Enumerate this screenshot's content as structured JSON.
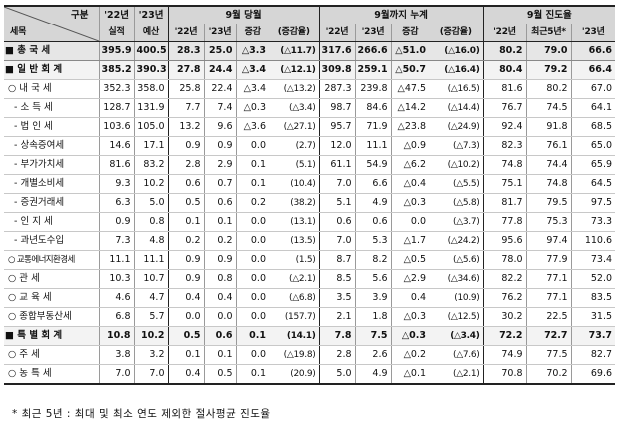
{
  "header": {
    "corner_top": "구분",
    "corner_bottom": "세목",
    "col_22_top": "'22년",
    "col_22_bottom": "실적",
    "col_23_top": "'23년",
    "col_23_bottom": "예산",
    "group_month": "9월 당월",
    "group_cum": "9월까지 누계",
    "group_progress": "9월 진도율",
    "sub_22": "'22년",
    "sub_23": "'23년",
    "sub_change": "증감",
    "sub_rate": "(증감율)",
    "sub_p22": "'22년",
    "sub_p5y": "최근5년*",
    "sub_p23": "'23년"
  },
  "rows": [
    {
      "label": "■ 총 국 세",
      "c": [
        "395.9",
        "400.5",
        "28.3",
        "25.0",
        "△3.3",
        "(△11.7)",
        "317.6",
        "266.6",
        "△51.0",
        "(△16.0)",
        "80.2",
        "79.0",
        "66.6"
      ]
    },
    {
      "label": "■ 일 반 회 계",
      "c": [
        "385.2",
        "390.3",
        "27.8",
        "24.4",
        "△3.4",
        "(△12.1)",
        "309.8",
        "259.1",
        "△50.7",
        "(△16.4)",
        "80.4",
        "79.2",
        "66.4"
      ]
    },
    {
      "label": "○ 내   국   세",
      "c": [
        "352.3",
        "358.0",
        "25.8",
        "22.4",
        "△3.4",
        "(△13.2)",
        "287.3",
        "239.8",
        "△47.5",
        "(△16.5)",
        "81.6",
        "80.2",
        "67.0"
      ]
    },
    {
      "label": "- 소  득  세",
      "c": [
        "128.7",
        "131.9",
        "7.7",
        "7.4",
        "△0.3",
        "(△3.4)",
        "98.7",
        "84.6",
        "△14.2",
        "(△14.4)",
        "76.7",
        "74.5",
        "64.1"
      ]
    },
    {
      "label": "- 법  인  세",
      "c": [
        "103.6",
        "105.0",
        "13.2",
        "9.6",
        "△3.6",
        "(△27.1)",
        "95.7",
        "71.9",
        "△23.8",
        "(△24.9)",
        "92.4",
        "91.8",
        "68.5"
      ]
    },
    {
      "label": "- 상속증여세",
      "c": [
        "14.6",
        "17.1",
        "0.9",
        "0.9",
        "0.0",
        "(2.7)",
        "12.0",
        "11.1",
        "△0.9",
        "(△7.3)",
        "82.3",
        "76.1",
        "65.0"
      ]
    },
    {
      "label": "- 부가가치세",
      "c": [
        "81.6",
        "83.2",
        "2.8",
        "2.9",
        "0.1",
        "(5.1)",
        "61.1",
        "54.9",
        "△6.2",
        "(△10.2)",
        "74.8",
        "74.4",
        "65.9"
      ]
    },
    {
      "label": "- 개별소비세",
      "c": [
        "9.3",
        "10.2",
        "0.6",
        "0.7",
        "0.1",
        "(10.4)",
        "7.0",
        "6.6",
        "△0.4",
        "(△5.5)",
        "75.1",
        "74.8",
        "64.5"
      ]
    },
    {
      "label": "- 증권거래세",
      "c": [
        "6.3",
        "5.0",
        "0.5",
        "0.6",
        "0.2",
        "(38.2)",
        "5.1",
        "4.9",
        "△0.3",
        "(△5.8)",
        "81.7",
        "79.5",
        "97.5"
      ]
    },
    {
      "label": "- 인  지  세",
      "c": [
        "0.9",
        "0.8",
        "0.1",
        "0.1",
        "0.0",
        "(13.1)",
        "0.6",
        "0.6",
        "0.0",
        "(△3.7)",
        "77.8",
        "75.3",
        "73.3"
      ]
    },
    {
      "label": "- 과년도수입",
      "c": [
        "7.3",
        "4.8",
        "0.2",
        "0.2",
        "0.0",
        "(13.5)",
        "7.0",
        "5.3",
        "△1.7",
        "(△24.2)",
        "95.6",
        "97.4",
        "110.6"
      ]
    },
    {
      "label": "○ 교통에너지환경세",
      "c": [
        "11.1",
        "11.1",
        "0.9",
        "0.9",
        "0.0",
        "(1.5)",
        "8.7",
        "8.2",
        "△0.5",
        "(△5.6)",
        "78.0",
        "77.9",
        "73.4"
      ]
    },
    {
      "label": "○ 관        세",
      "c": [
        "10.3",
        "10.7",
        "0.9",
        "0.8",
        "0.0",
        "(△2.1)",
        "8.5",
        "5.6",
        "△2.9",
        "(△34.6)",
        "82.2",
        "77.1",
        "52.0"
      ]
    },
    {
      "label": "○ 교   육   세",
      "c": [
        "4.6",
        "4.7",
        "0.4",
        "0.4",
        "0.0",
        "(△6.8)",
        "3.5",
        "3.9",
        "0.4",
        "(10.9)",
        "76.2",
        "77.1",
        "83.5"
      ]
    },
    {
      "label": "○ 종합부동산세",
      "c": [
        "6.8",
        "5.7",
        "0.0",
        "0.0",
        "0.0",
        "(157.7)",
        "2.1",
        "1.8",
        "△0.3",
        "(△12.5)",
        "30.2",
        "22.5",
        "31.5"
      ]
    },
    {
      "label": "■ 특 별 회 계",
      "c": [
        "10.8",
        "10.2",
        "0.5",
        "0.6",
        "0.1",
        "(14.1)",
        "7.8",
        "7.5",
        "△0.3",
        "(△3.4)",
        "72.2",
        "72.7",
        "73.7"
      ]
    },
    {
      "label": "○ 주        세",
      "c": [
        "3.8",
        "3.2",
        "0.1",
        "0.1",
        "0.0",
        "(△19.8)",
        "2.8",
        "2.6",
        "△0.2",
        "(△7.6)",
        "74.9",
        "77.5",
        "82.7"
      ]
    },
    {
      "label": "○ 농   특   세",
      "c": [
        "7.0",
        "7.0",
        "0.4",
        "0.5",
        "0.1",
        "(20.9)",
        "5.0",
        "4.9",
        "△0.1",
        "(△2.1)",
        "70.8",
        "70.2",
        "69.6"
      ]
    }
  ],
  "footnote": "* 최근 5년 : 최대 및 최소 연도 제외한 절사평균 진도율"
}
